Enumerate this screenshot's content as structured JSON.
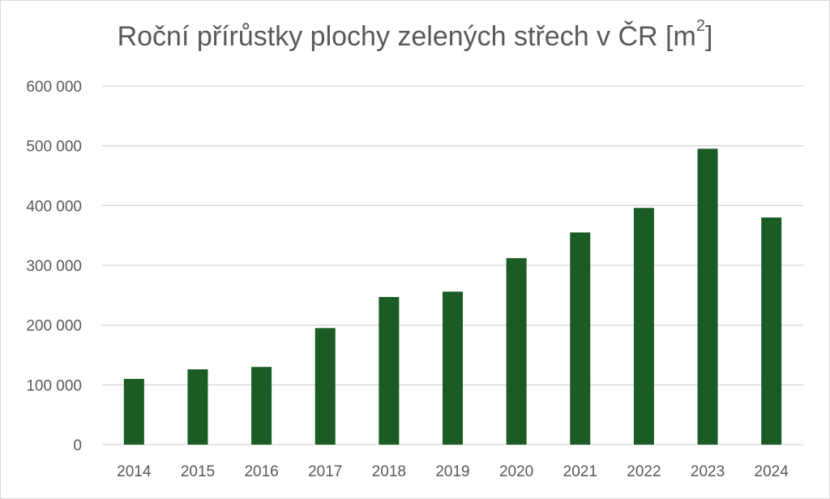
{
  "chart_data": {
    "type": "bar",
    "title_main": "Roční přírůstky plochy zelených střech v ČR  [m",
    "title_sup": "2",
    "title_end": "]",
    "categories": [
      "2014",
      "2015",
      "2016",
      "2017",
      "2018",
      "2019",
      "2020",
      "2021",
      "2022",
      "2023",
      "2024"
    ],
    "values": [
      110000,
      126000,
      130000,
      195000,
      247000,
      256000,
      312000,
      355000,
      396000,
      495000,
      380000
    ],
    "y_ticks": [
      "0",
      "100 000",
      "200 000",
      "300 000",
      "400 000",
      "500 000",
      "600 000"
    ],
    "y_tick_values": [
      0,
      100000,
      200000,
      300000,
      400000,
      500000,
      600000
    ],
    "ylim": [
      0,
      600000
    ],
    "bar_color": "#1a5c24",
    "grid_color": "#d9d9d9",
    "text_color": "#595959",
    "grid": true,
    "legend": "none"
  }
}
